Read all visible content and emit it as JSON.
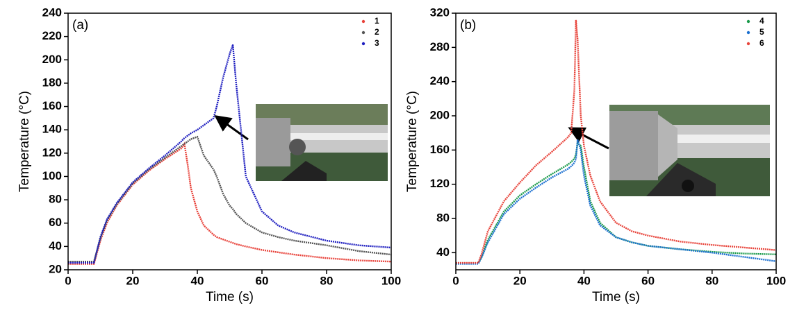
{
  "chart_data": [
    {
      "type": "line",
      "title": "(a)",
      "x_label": "Time (s)",
      "y_label": "Temperature (°C)",
      "x": [
        0,
        7,
        8,
        10,
        12,
        15,
        20,
        25,
        30,
        35,
        36,
        37,
        38,
        40,
        42,
        45,
        46,
        48,
        50,
        51,
        52,
        55,
        60,
        65,
        70,
        80,
        90,
        100
      ],
      "series": [
        {
          "name": "1",
          "color": "#e8423a",
          "values": [
            25,
            25,
            25,
            45,
            60,
            75,
            93,
            105,
            115,
            124,
            128,
            110,
            90,
            70,
            58,
            50,
            48,
            46,
            44,
            43,
            42,
            40,
            37,
            35,
            33,
            30,
            28,
            27
          ]
        },
        {
          "name": "2",
          "color": "#555555",
          "values": [
            27,
            27,
            27,
            47,
            62,
            76,
            94,
            106,
            116,
            126,
            128,
            130,
            132,
            134,
            118,
            106,
            100,
            85,
            75,
            72,
            68,
            60,
            52,
            48,
            45,
            41,
            36,
            33
          ]
        },
        {
          "name": "3",
          "color": "#1f1fc0",
          "values": [
            26,
            26,
            26,
            48,
            63,
            77,
            95,
            107,
            118,
            130,
            133,
            135,
            137,
            140,
            144,
            150,
            160,
            185,
            205,
            213,
            180,
            100,
            70,
            58,
            52,
            45,
            41,
            39
          ]
        }
      ],
      "xlim": [
        0,
        100
      ],
      "xticks": [
        0,
        20,
        40,
        60,
        80,
        100
      ],
      "ylim": [
        20,
        240
      ],
      "yticks": [
        20,
        40,
        60,
        80,
        100,
        120,
        140,
        160,
        180,
        200,
        220,
        240
      ],
      "legend": "top-right"
    },
    {
      "type": "line",
      "title": "(b)",
      "x_label": "Time (s)",
      "y_label": "Temperature (°C)",
      "x": [
        0,
        6,
        7,
        8,
        10,
        15,
        20,
        25,
        30,
        35,
        36,
        37,
        37.5,
        38,
        39,
        40,
        42,
        45,
        50,
        55,
        60,
        70,
        80,
        90,
        100
      ],
      "series": [
        {
          "name": "4",
          "color": "#1a9a4a",
          "values": [
            28,
            28,
            28,
            35,
            55,
            88,
            107,
            120,
            132,
            143,
            146,
            150,
            155,
            168,
            165,
            140,
            100,
            75,
            58,
            52,
            48,
            44,
            41,
            39,
            38
          ]
        },
        {
          "name": "5",
          "color": "#1a6fd0",
          "values": [
            27,
            27,
            27,
            34,
            52,
            85,
            103,
            116,
            128,
            138,
            141,
            145,
            150,
            172,
            160,
            130,
            95,
            72,
            58,
            52,
            48,
            44,
            40,
            35,
            30
          ]
        },
        {
          "name": "6",
          "color": "#e8453c",
          "values": [
            28,
            28,
            28,
            38,
            65,
            100,
            122,
            142,
            158,
            175,
            180,
            230,
            312,
            290,
            200,
            165,
            130,
            100,
            75,
            65,
            60,
            53,
            49,
            46,
            43
          ]
        }
      ],
      "xlim": [
        0,
        100
      ],
      "xticks": [
        0,
        20,
        40,
        60,
        80,
        100
      ],
      "ylim": [
        20,
        320
      ],
      "yticks": [
        40,
        80,
        120,
        160,
        200,
        240,
        280,
        320
      ],
      "legend": "top-right"
    }
  ]
}
